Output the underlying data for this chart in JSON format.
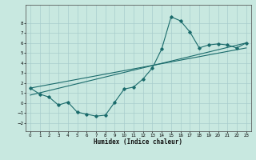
{
  "xlabel": "Humidex (Indice chaleur)",
  "ylabel": "",
  "bg_color": "#c8e8e0",
  "grid_color": "#a8cccc",
  "line_color": "#1a6b6b",
  "xlim": [
    -0.5,
    23.5
  ],
  "ylim": [
    -2.8,
    9.8
  ],
  "xticks": [
    0,
    1,
    2,
    3,
    4,
    5,
    6,
    7,
    8,
    9,
    10,
    11,
    12,
    13,
    14,
    15,
    16,
    17,
    18,
    19,
    20,
    21,
    22,
    23
  ],
  "yticks": [
    -2,
    -1,
    0,
    1,
    2,
    3,
    4,
    5,
    6,
    7,
    8
  ],
  "curve1_x": [
    0,
    1,
    2,
    3,
    4,
    5,
    6,
    7,
    8,
    9,
    10,
    11,
    12,
    13,
    14,
    15,
    16,
    17,
    18,
    19,
    20,
    21,
    22,
    23
  ],
  "curve1_y": [
    1.5,
    0.9,
    0.6,
    -0.2,
    0.1,
    -0.9,
    -1.1,
    -1.3,
    -1.2,
    0.1,
    1.4,
    1.6,
    2.4,
    3.5,
    5.4,
    8.6,
    8.2,
    7.1,
    5.5,
    5.8,
    5.9,
    5.8,
    5.5,
    6.0
  ],
  "line2_x": [
    0,
    23
  ],
  "line2_y": [
    1.5,
    5.5
  ],
  "line3_x": [
    0,
    23
  ],
  "line3_y": [
    0.8,
    6.0
  ]
}
